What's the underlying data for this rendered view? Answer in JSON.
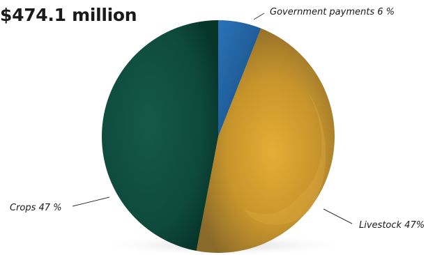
{
  "chart_data": {
    "type": "pie",
    "title": "$474.1 million",
    "slices": [
      {
        "label": "Government payments 6 %",
        "value": 6,
        "color": "#1f5f9e"
      },
      {
        "label": "Livestock 47%",
        "value": 47,
        "color": "#c8952c"
      },
      {
        "label": "Crops 47 %",
        "value": 47,
        "color": "#0e4a3c"
      }
    ]
  }
}
